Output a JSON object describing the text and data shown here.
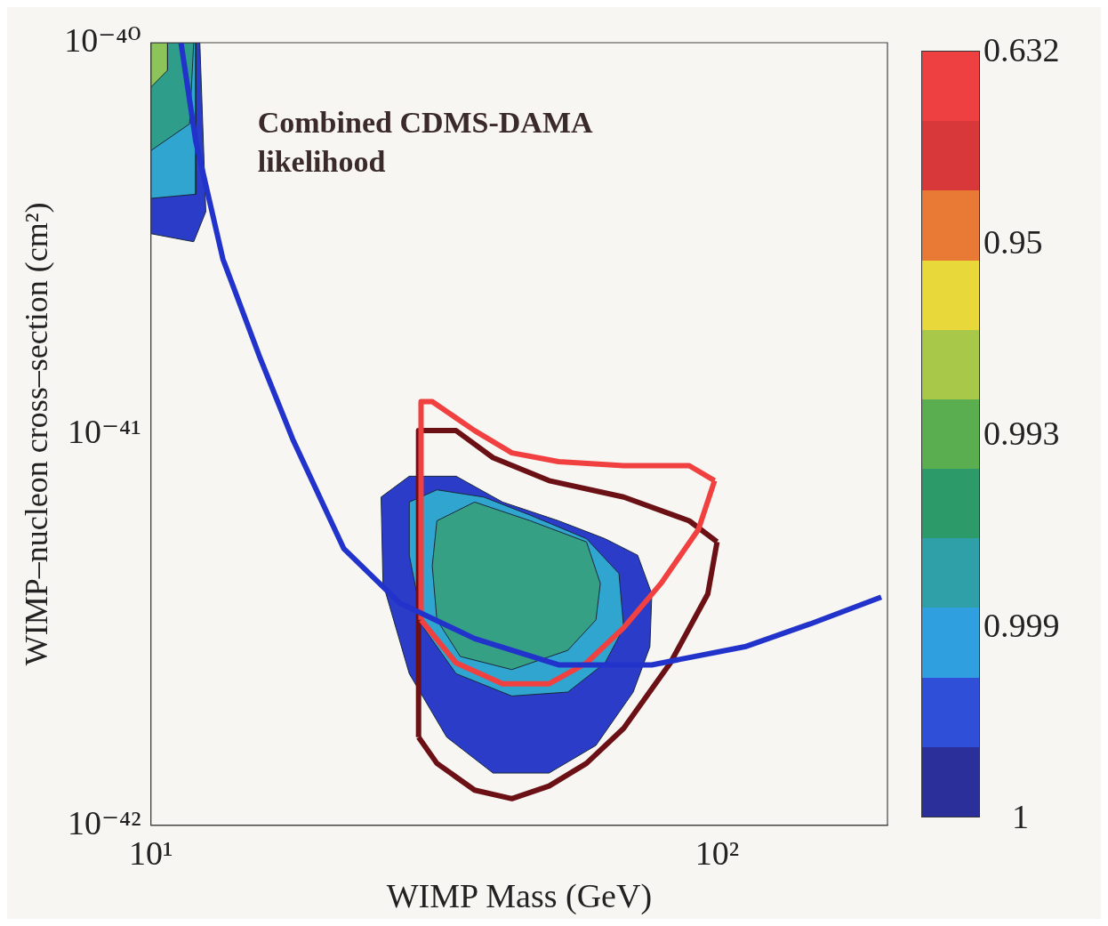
{
  "chart_data": {
    "type": "line",
    "xlabel": "WIMP Mass (GeV)",
    "ylabel": "WIMP–nucleon cross–section (cm²)",
    "log": "xy",
    "grid": false,
    "legend": false,
    "marker": "none",
    "xlim": [
      10,
      200
    ],
    "xticks": [
      {
        "value": 10,
        "label": "10¹"
      },
      {
        "value": 100,
        "label": "10²"
      }
    ],
    "ylim": [
      1e-42,
      1e-40
    ],
    "yticks": [
      {
        "value": 1e-42,
        "label": "10⁻⁴²"
      },
      {
        "value": 1e-41,
        "label": "10⁻⁴¹"
      },
      {
        "value": 1e-40,
        "label": "10⁻⁴⁰"
      }
    ],
    "annotations": [
      "Combined CDMS-DAMA likelihood",
      "0.632",
      "0.95",
      "0.993",
      "0.999",
      "1"
    ],
    "series": [
      {
        "type": "area",
        "color": "#2a3cc8",
        "x": [
          25.5,
          28.6,
          34.6,
          41.8,
          52.5,
          63.4,
          72.4,
          76.7,
          76.1,
          71.1,
          61.1,
          50.5,
          40.2,
          33.3,
          28.6,
          25.7,
          25.5
        ],
        "values": [
          6.9e-42,
          7.8e-42,
          7.8e-42,
          6.7e-42,
          6e-42,
          5.4e-42,
          4.9e-42,
          3.9e-42,
          2.86e-42,
          2.19e-42,
          1.6e-42,
          1.36e-42,
          1.36e-42,
          1.68e-42,
          2.44e-42,
          4.15e-42,
          6.9e-42
        ]
      },
      {
        "type": "area",
        "color": "#2fa5cf",
        "x": [
          28.6,
          32.0,
          38.7,
          46.8,
          58.8,
          67.1,
          68.4,
          63.4,
          54.5,
          43.4,
          34.6,
          30.3,
          28.6,
          28.6
        ],
        "values": [
          6.7e-42,
          7.2e-42,
          6.9e-42,
          6.2e-42,
          5.4e-42,
          4.4e-42,
          3.2e-42,
          2.6e-42,
          2.19e-42,
          2.14e-42,
          2.44e-42,
          3.2e-42,
          4.9e-42,
          6.7e-42
        ]
      },
      {
        "type": "area",
        "color": "#35a084",
        "x": [
          32.0,
          37.3,
          46.8,
          58.8,
          62.2,
          61.1,
          54.5,
          43.4,
          35.2,
          32.0,
          31.4,
          32.0
        ],
        "values": [
          6e-42,
          6.7e-42,
          6e-42,
          5.3e-42,
          4.15e-42,
          3.35e-42,
          2.8e-42,
          2.5e-42,
          2.7e-42,
          3.35e-42,
          4.6e-42,
          6e-42
        ]
      },
      {
        "type": "area",
        "color": "#2a3cc8",
        "x": [
          10,
          12.2,
          12.5,
          11.9,
          10,
          10
        ],
        "values": [
          1e-40,
          1e-40,
          3.7e-41,
          3.1e-41,
          3.25e-41,
          1e-40
        ]
      },
      {
        "type": "area",
        "color": "#2fa5cf",
        "x": [
          10,
          12.0,
          12.0,
          10,
          10
        ],
        "values": [
          1e-40,
          1e-40,
          4.1e-41,
          4e-41,
          1e-40
        ]
      },
      {
        "type": "area",
        "color": "#2e9e8a",
        "x": [
          10,
          11.9,
          11.7,
          10,
          10
        ],
        "values": [
          1e-40,
          1e-40,
          6.2e-41,
          5.3e-41,
          1e-40
        ]
      },
      {
        "type": "area",
        "color": "#8cc45a",
        "x": [
          10,
          10.7,
          10.7,
          10,
          10
        ],
        "values": [
          1e-40,
          1e-40,
          8.5e-41,
          7.7e-41,
          1e-40
        ]
      },
      {
        "type": "line",
        "color": "#6b1015",
        "x": [
          29.7,
          29.7,
          34.6,
          40.2,
          50.5,
          68.4,
          89.3,
          100
        ],
        "values": [
          1.68e-42,
          1.02e-41,
          1.02e-41,
          8.7e-42,
          7.6e-42,
          6.9e-42,
          6e-42,
          5.3e-42
        ]
      },
      {
        "type": "line",
        "color": "#6b1015",
        "x": [
          29.7,
          32.0,
          37.3,
          43.4,
          50.5,
          58.8,
          68.4,
          82.7,
          96.3,
          100
        ],
        "values": [
          1.68e-42,
          1.44e-42,
          1.23e-42,
          1.17e-42,
          1.26e-42,
          1.44e-42,
          1.77e-42,
          2.6e-42,
          3.9e-42,
          5.3e-42
        ]
      },
      {
        "type": "line",
        "color": "#f04040",
        "x": [
          30.0,
          30.0,
          31.4,
          37.3,
          43.4,
          52.5,
          68.4,
          89.3,
          99
        ],
        "values": [
          3.35e-42,
          1.21e-41,
          1.21e-41,
          1.02e-41,
          8.95e-42,
          8.5e-42,
          8.3e-42,
          8.3e-42,
          7.6e-42
        ]
      },
      {
        "type": "line",
        "color": "#f04040",
        "x": [
          30.0,
          34.6,
          41.8,
          50.5,
          58.8,
          68.4,
          79.6,
          92.7,
          99
        ],
        "values": [
          3.35e-42,
          2.6e-42,
          2.3e-42,
          2.3e-42,
          2.6e-42,
          3.2e-42,
          4.15e-42,
          5.7e-42,
          7.6e-42
        ]
      },
      {
        "type": "line",
        "color": "#2233cc",
        "x": [
          11.3,
          12.0,
          13.4,
          15.6,
          17.8,
          21.9,
          27.5,
          37.3,
          52.5,
          76.7,
          112,
          146,
          195
        ],
        "values": [
          1e-40,
          5.6e-41,
          2.8e-41,
          1.56e-41,
          9.7e-42,
          5.1e-42,
          3.7e-42,
          3e-42,
          2.57e-42,
          2.57e-42,
          2.86e-42,
          3.27e-42,
          3.83e-42
        ]
      }
    ]
  }
}
